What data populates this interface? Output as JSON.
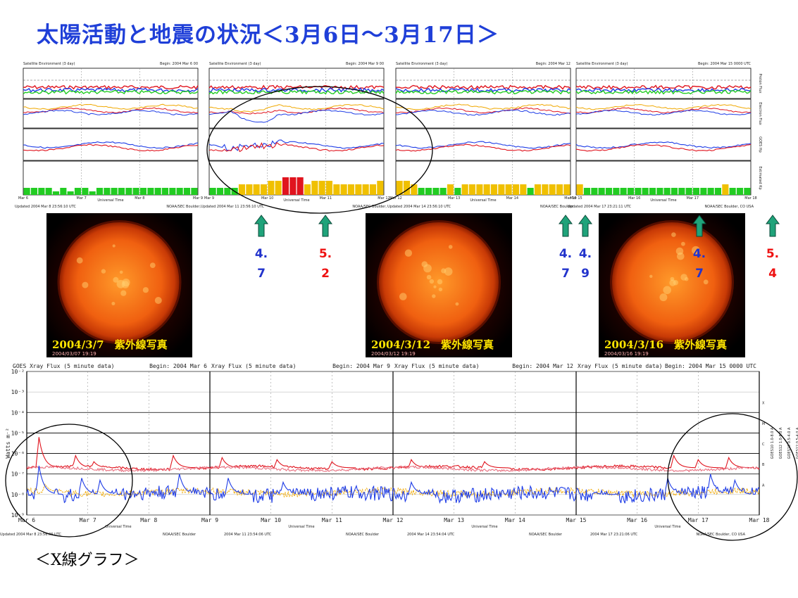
{
  "title": "太陽活動と地震の状況＜3月6日～3月17日＞",
  "xray_caption": "＜X線グラフ＞",
  "colors": {
    "title": "#1f3fd8",
    "red": "#e0141e",
    "blue": "#1e3ce6",
    "orange": "#f0a800",
    "green": "#22cc22",
    "arrow": "#1fa37a"
  },
  "sun_images": [
    {
      "label": "2004/3/7　紫外線写真",
      "date": "2004/03/07 19:19"
    },
    {
      "label": "2004/3/12　紫外線写真",
      "date": "2004/03/12 19:19"
    },
    {
      "label": "2004/3/16　紫外線写真",
      "date": "2004/03/16 19:19"
    }
  ],
  "earthquakes": [
    {
      "line1": "4.",
      "line2": "7",
      "color": "#2233cc",
      "arrow": "#1fa37a"
    },
    {
      "line1": "5.",
      "line2": "2",
      "color": "#ee1111",
      "arrow": "#1fa37a"
    },
    {
      "line1": "4.",
      "line2": "7",
      "color": "#2233cc",
      "arrow": "#1fa37a"
    },
    {
      "line1": "4.",
      "line2": "9",
      "color": "#2233cc",
      "arrow": "#1fa37a"
    },
    {
      "line1": "4.",
      "line2": "7",
      "color": "#2233cc",
      "arrow": "#1fa37a"
    },
    {
      "line1": "5.",
      "line2": "4",
      "color": "#ee1111",
      "arrow": "#1fa37a"
    }
  ],
  "sat_panels": [
    {
      "header": "Satellite Environment (3 day)",
      "begin": "Begin:  2004 Mar 6 00",
      "days": [
        "Mar 6",
        "Mar 7",
        "Mar 8",
        "Mar 9"
      ],
      "footer_left": "Updated 2004 Mar  8 23:56:10 UTC",
      "footer_right": "NOAA/SEC Boulder, "
    },
    {
      "header": "Satellite Environment (3 day)",
      "begin": "Begin:  2004 Mar 9 00",
      "days": [
        "Mar 9",
        "Mar 10",
        "Mar 11",
        "Mar 12"
      ],
      "footer_left": "Updated 2004 Mar 11 23:56:10 UTC",
      "footer_right": "NOAA/SEC Boulder, "
    },
    {
      "header": "Satellite Environment (3 day)",
      "begin": "Begin:  2004 Mar 12",
      "days": [
        "Mar 12",
        "Mar 13",
        "Mar 14",
        "Mar 15"
      ],
      "footer_left": "Updated 2004 Mar 14 23:56:10 UTC",
      "footer_right": "NOAA/SEC Boulder"
    },
    {
      "header": "Satellite Environment (3 day)",
      "begin": "Begin:  2004 Mar 15 0000 UTC",
      "days": [
        "Mar 15",
        "Mar 16",
        "Mar 17",
        "Mar 18"
      ],
      "footer_left": "Updated 2004 Mar 17 23:21:11 UTC",
      "footer_right": "NOAA/SEC Boulder, CO USA"
    }
  ],
  "sat_row_labels": [
    "Proton Flux",
    "Electron Flux",
    "GOES Hp",
    "Estimated Kp"
  ],
  "sat_xlabel": "Universal Time",
  "xray_panels": [
    {
      "header": "GOES Xray Flux (5 minute data)",
      "begin": "Begin:  2004 Mar 6",
      "footer": "Updated 2004 Mar  8 23:56:06 UTC",
      "footer2": "NOAA/SEC Boulder"
    },
    {
      "header": "Xray Flux (5 minute data)",
      "begin": "Begin:  2004 Mar 9",
      "footer": "2004 Mar 11 23:54:06 UTC",
      "footer2": "NOAA/SEC Boulder"
    },
    {
      "header": "Xray Flux (5 minute data)",
      "begin": "Begin:  2004 Mar 12",
      "footer": "2004 Mar 14 23:54:04 UTC",
      "footer2": "NOAA/SEC Boulder"
    },
    {
      "header": "Xray Flux (5 minute data)",
      "begin": "Begin:  2004 Mar 15 0000 UTC",
      "footer": "2004 Mar 17 23:21:06 UTC",
      "footer2": "NOAA/SEC Boulder, CO USA"
    }
  ],
  "xray_ylabel": "Watts m⁻²",
  "xray_xlabel": "Universal Time",
  "xray_legend": [
    "GOES10 1.0-8.0 A",
    "GOES12 1.0-8.0 A",
    "GOES10 0.5-4.0 A",
    "GOES12 0.5-4.0 A"
  ],
  "chart_data": {
    "type": "line",
    "kp": {
      "days": [
        "Mar 6",
        "Mar 7",
        "Mar 8",
        "Mar 9",
        "Mar 10",
        "Mar 11",
        "Mar 12",
        "Mar 13",
        "Mar 14",
        "Mar 15",
        "Mar 16",
        "Mar 17"
      ],
      "values": [
        2,
        2,
        2,
        2,
        1,
        2,
        1,
        2,
        2,
        1,
        2,
        2,
        2,
        2,
        2,
        2,
        2,
        2,
        2,
        2,
        2,
        2,
        2,
        2,
        2,
        2,
        2,
        2,
        3,
        3,
        3,
        3,
        4,
        4,
        5,
        5,
        5,
        3,
        4,
        4,
        4,
        3,
        3,
        3,
        3,
        3,
        3,
        4,
        4,
        4,
        3,
        2,
        2,
        2,
        2,
        3,
        2,
        3,
        3,
        3,
        3,
        3,
        3,
        3,
        3,
        3,
        2,
        3,
        3,
        3,
        3,
        3,
        3,
        2,
        2,
        2,
        2,
        2,
        2,
        2,
        2,
        2,
        2,
        2,
        2,
        2,
        2,
        2,
        2,
        2,
        2,
        2,
        3,
        2,
        2,
        2
      ],
      "ylim": [
        0,
        9
      ]
    },
    "xray": {
      "x": [
        "Mar 6",
        "Mar 7",
        "Mar 8",
        "Mar 9",
        "Mar 10",
        "Mar 11",
        "Mar 12",
        "Mar 13",
        "Mar 14",
        "Mar 15",
        "Mar 16",
        "Mar 17",
        "Mar 18"
      ],
      "yticks": [
        "10⁻²",
        "10⁻³",
        "10⁻⁴",
        "10⁻⁵",
        "10⁻⁶",
        "10⁻⁷",
        "10⁻⁸",
        "10⁻⁹"
      ],
      "class_labels": [
        "X",
        "M",
        "C",
        "B",
        "A"
      ],
      "ylim": [
        -9,
        -2
      ],
      "series": [
        {
          "name": "GOES12 1.0-8.0 A",
          "color": "#e0141e",
          "baseline": -6.7,
          "peaks": [
            [
              0.2,
              -5.2
            ],
            [
              0.8,
              -6.1
            ],
            [
              1.1,
              -6.4
            ],
            [
              2.4,
              -6.1
            ],
            [
              3.2,
              -6.2
            ],
            [
              4.1,
              -6.3
            ],
            [
              5.0,
              -6.4
            ],
            [
              6.3,
              -6.3
            ],
            [
              7.5,
              -6.4
            ],
            [
              9.3,
              -6.6
            ],
            [
              10.6,
              -6.1
            ],
            [
              11.0,
              -6.3
            ],
            [
              11.5,
              -6.2
            ]
          ]
        },
        {
          "name": "GOES10 1.0-8.0 A",
          "color": "#e87080",
          "baseline": -6.75,
          "peaks": []
        },
        {
          "name": "GOES10 0.5-4.0 A",
          "color": "#f0a800",
          "baseline": -7.9,
          "peaks": [
            [
              0.3,
              -7.5
            ]
          ]
        },
        {
          "name": "GOES12 0.5-4.0 A",
          "color": "#1e3ce6",
          "baseline": -8.0,
          "peaks": [
            [
              0.2,
              -6.6
            ],
            [
              0.9,
              -7.2
            ],
            [
              1.2,
              -7.3
            ],
            [
              2.5,
              -7.0
            ],
            [
              3.3,
              -7.2
            ],
            [
              4.2,
              -7.4
            ],
            [
              6.3,
              -7.4
            ],
            [
              9.3,
              -7.9
            ],
            [
              10.5,
              -7.2
            ],
            [
              11.2,
              -7.0
            ],
            [
              11.6,
              -7.3
            ]
          ]
        }
      ]
    }
  }
}
